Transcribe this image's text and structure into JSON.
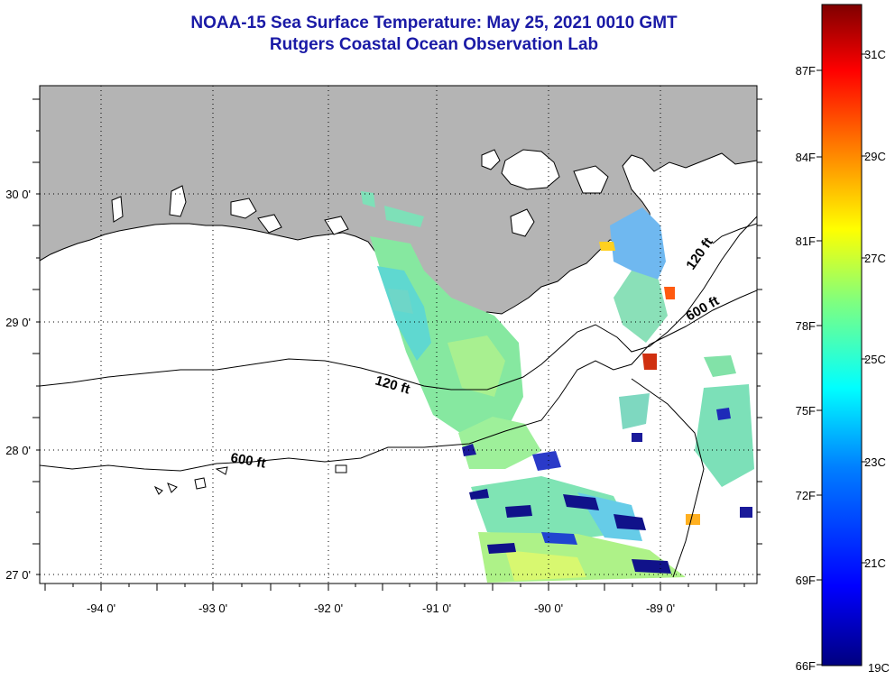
{
  "header": {
    "title": "NOAA-15 Sea Surface Temperature:  May 25, 2021 0010 GMT",
    "subtitle": "Rutgers Coastal Ocean Observation Lab"
  },
  "axes": {
    "longitude_ticks": [
      "-94 0'",
      "-93 0'",
      "-92 0'",
      "-91 0'",
      "-90 0'",
      "-89 0'"
    ],
    "latitude_ticks": [
      "30 0'",
      "29 0'",
      "28 0'",
      "27 0'"
    ],
    "lon_range": [
      -94.55,
      -88.0
    ],
    "lat_range": [
      26.95,
      30.85
    ]
  },
  "contours": [
    {
      "label": "120 ft"
    },
    {
      "label": "600 ft"
    },
    {
      "label": "120 ft"
    },
    {
      "label": "600 ft"
    }
  ],
  "colorbar": {
    "fahrenheit_labels": [
      "87F",
      "84F",
      "81F",
      "78F",
      "75F",
      "72F",
      "69F",
      "66F"
    ],
    "celsius_labels": [
      "31C",
      "29C",
      "27C",
      "25C",
      "23C",
      "21C",
      "19C"
    ],
    "min_c": 19,
    "max_c": 32,
    "colors": [
      "#00007f",
      "#0000ff",
      "#007fff",
      "#00ffff",
      "#7fff7f",
      "#ffff00",
      "#ff7f00",
      "#ff0000",
      "#7f0000"
    ]
  },
  "colors": {
    "title": "#1a1aa6",
    "land": "#b4b4b4",
    "ocean": "#ffffff"
  }
}
